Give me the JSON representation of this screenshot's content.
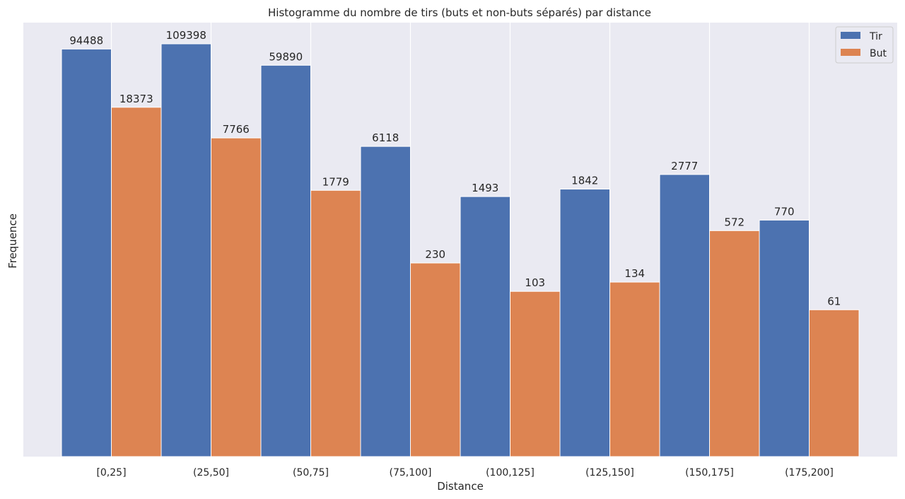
{
  "chart_data": {
    "type": "bar",
    "title": "Histogramme du nombre de tirs (buts et non-buts séparés) par distance",
    "xlabel": "Distance",
    "ylabel": "Frequence",
    "categories": [
      "[0,25]",
      "(25,50]",
      "(50,75]",
      "(75,100]",
      "(100,125]",
      "(125,150]",
      "(150,175]",
      "(175,200]"
    ],
    "series": [
      {
        "name": "Tir",
        "values": [
          94488,
          109398,
          59890,
          6118,
          1493,
          1842,
          2777,
          770
        ],
        "color": "#4c72b0"
      },
      {
        "name": "But",
        "values": [
          18373,
          7766,
          1779,
          230,
          103,
          134,
          572,
          61
        ],
        "color": "#dd8452"
      }
    ],
    "y_scale": "symlog",
    "grid": true,
    "legend_position": "top-right",
    "show_y_ticks": false,
    "plot_background": "#eaeaf2",
    "grid_color": "#ffffff"
  }
}
